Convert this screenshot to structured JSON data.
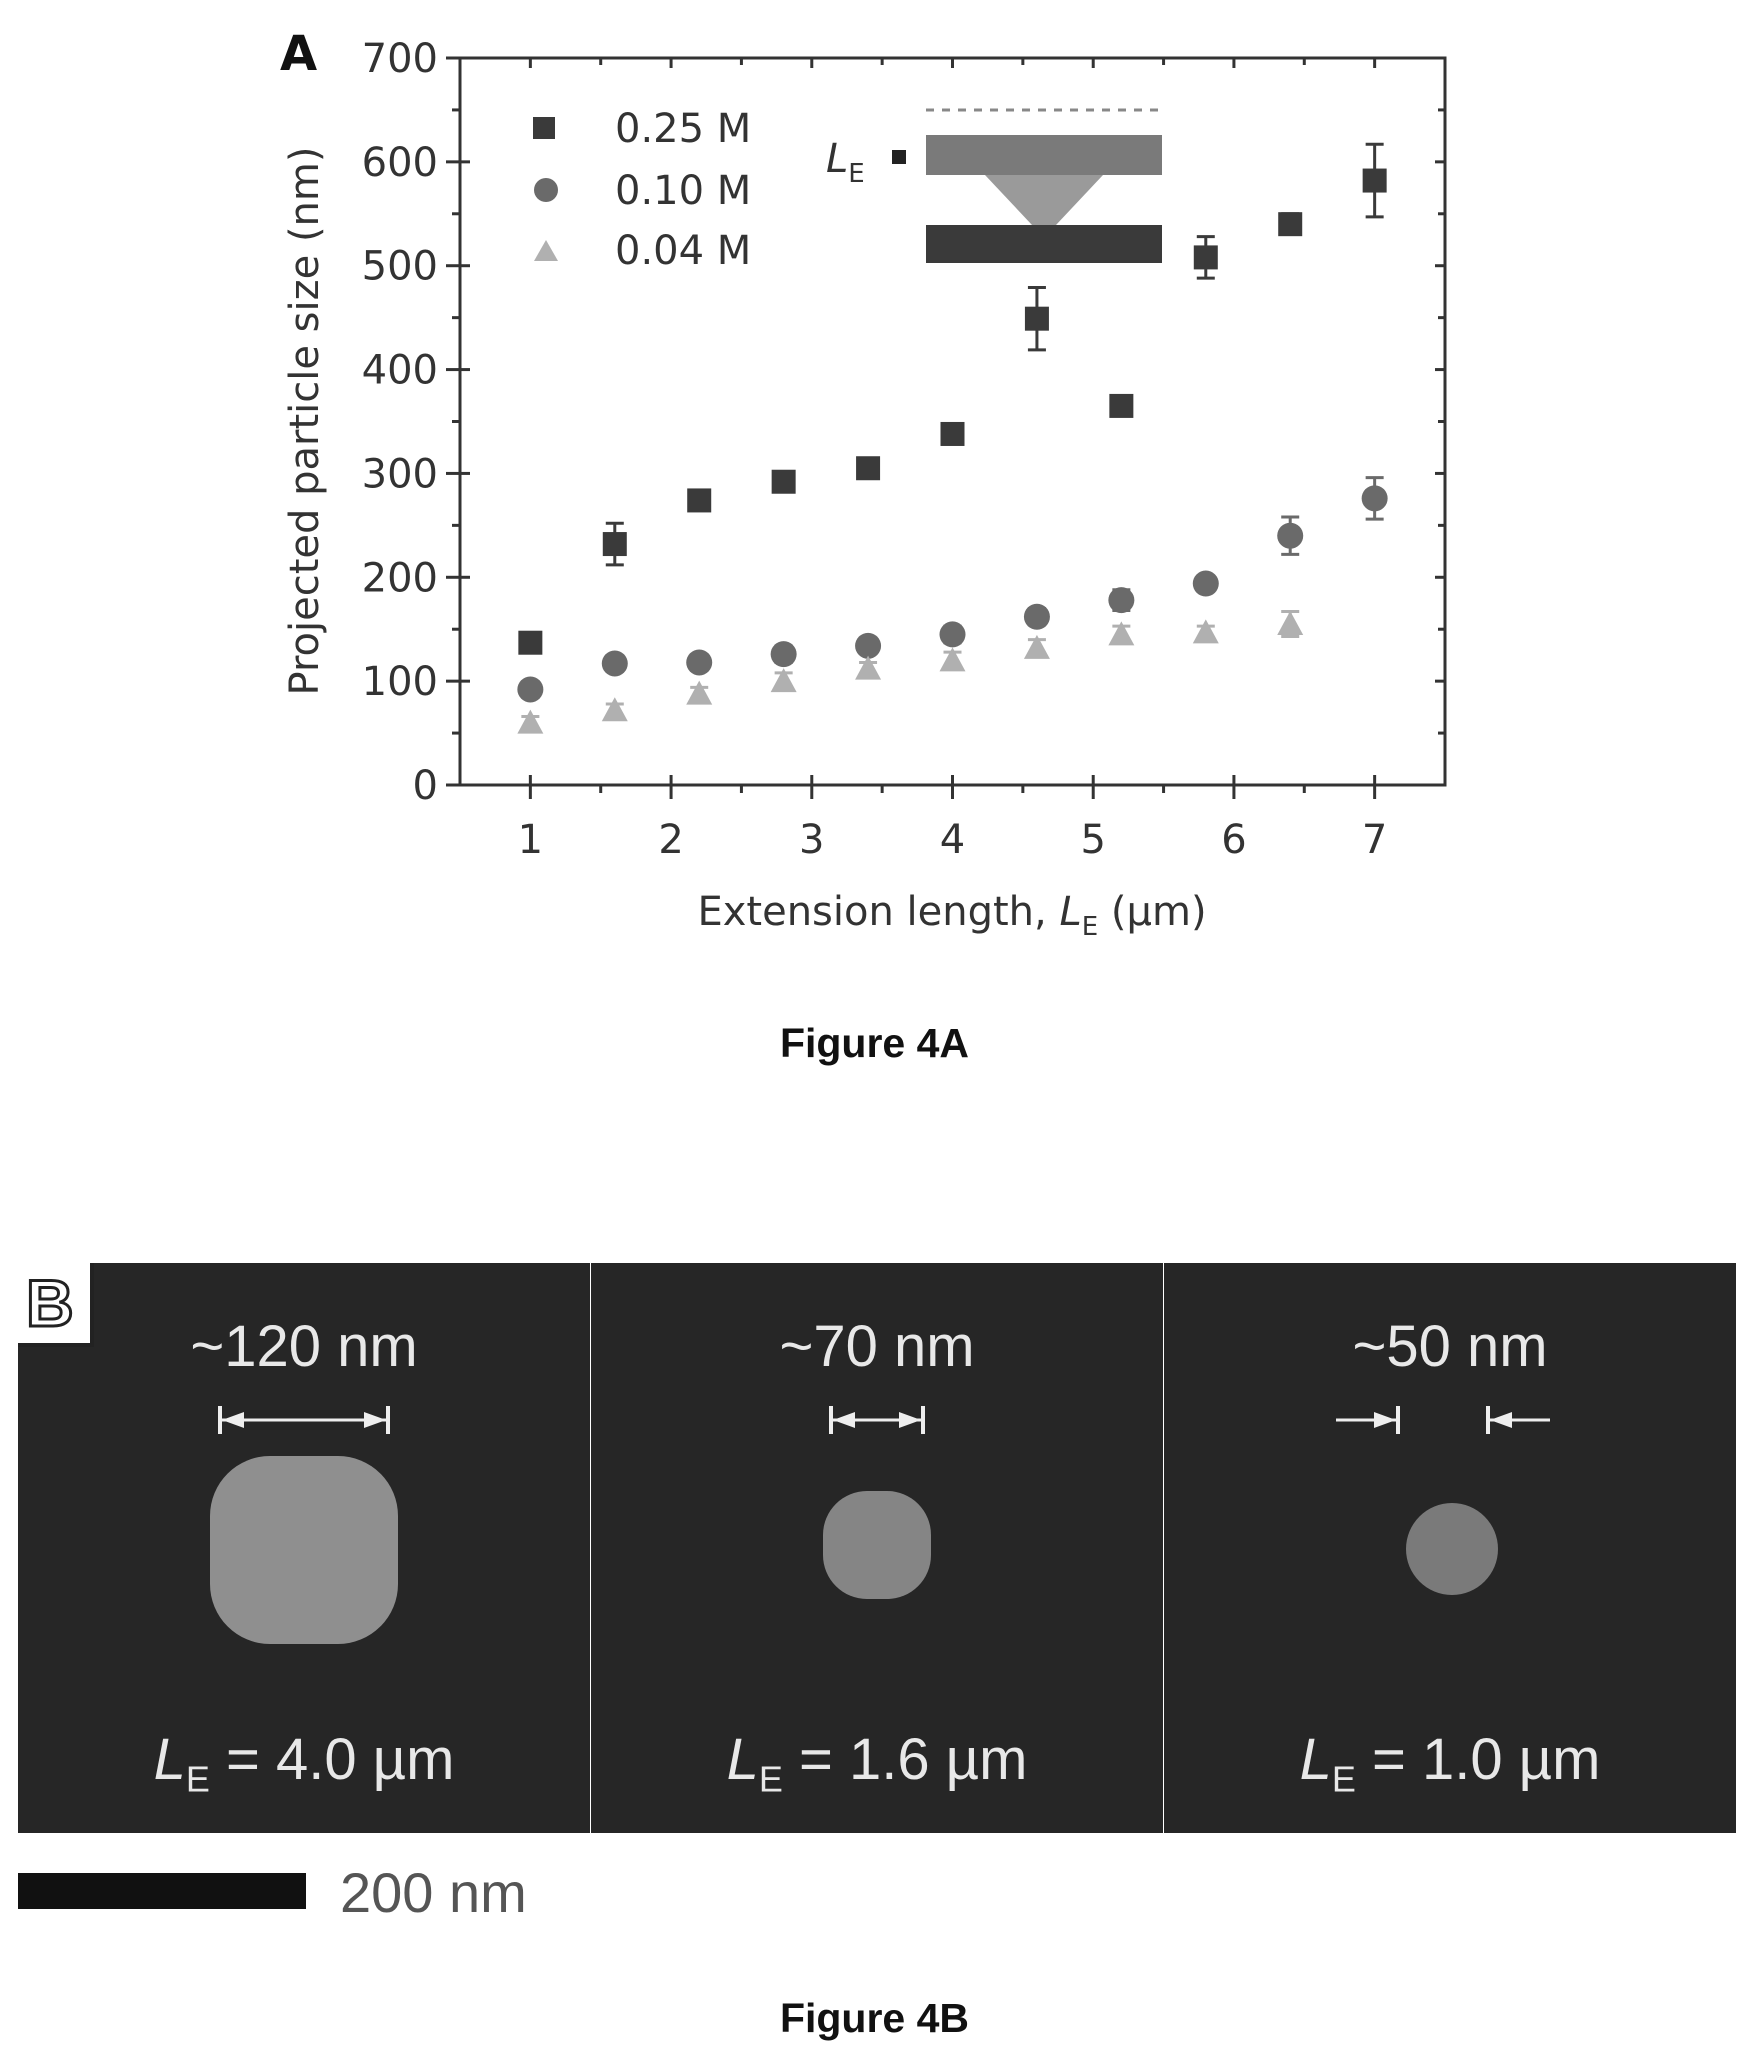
{
  "figure_a": {
    "panel_label": "A",
    "caption": "Figure 4A",
    "inset_label": "L",
    "inset_label_sub": "E"
  },
  "figure_b": {
    "panel_label": "B",
    "caption": "Figure 4B",
    "scale_bar_label": "200 nm",
    "panels": [
      {
        "size_label": "~120 nm",
        "le_prefix": "L",
        "le_sub": "E",
        "le_value": " = 4.0 µm",
        "particle_brightness": "#8f8f8f"
      },
      {
        "size_label": "~70 nm",
        "le_prefix": "L",
        "le_sub": "E",
        "le_value": " = 1.6 µm",
        "particle_brightness": "#858585"
      },
      {
        "size_label": "~50 nm",
        "le_prefix": "L",
        "le_sub": "E",
        "le_value": " = 1.0 µm",
        "particle_brightness": "#7a7a7a"
      }
    ]
  },
  "chart_data": {
    "type": "scatter",
    "title": "",
    "xlabel": "Extension length, ",
    "xlabel_symbol": "L",
    "xlabel_sub": "E",
    "xlabel_unit": " (µm)",
    "ylabel": "Projected particle size (nm)",
    "xlim": [
      0.5,
      7.5
    ],
    "ylim": [
      0,
      700
    ],
    "xticks": [
      1,
      2,
      3,
      4,
      5,
      6,
      7
    ],
    "yticks": [
      0,
      100,
      200,
      300,
      400,
      500,
      600,
      700
    ],
    "legend_position": "top-left",
    "grid": false,
    "series": [
      {
        "name": "0.25 M",
        "marker": "square",
        "color": "#3a3a3a",
        "x": [
          1.0,
          1.6,
          2.2,
          2.8,
          3.4,
          4.0,
          4.6,
          5.2,
          5.8,
          6.4,
          7.0
        ],
        "y": [
          137,
          232,
          274,
          292,
          305,
          338,
          449,
          365,
          508,
          540,
          582
        ],
        "err": [
          8,
          20,
          8,
          8,
          8,
          8,
          30,
          8,
          20,
          10,
          35
        ]
      },
      {
        "name": "0.10 M",
        "marker": "circle",
        "color": "#6a6a6a",
        "x": [
          1.0,
          1.6,
          2.2,
          2.8,
          3.4,
          4.0,
          4.6,
          5.2,
          5.8,
          6.4,
          7.0
        ],
        "y": [
          92,
          117,
          118,
          126,
          134,
          145,
          162,
          178,
          194,
          240,
          276
        ],
        "err": [
          6,
          6,
          6,
          8,
          6,
          8,
          8,
          10,
          6,
          18,
          20
        ]
      },
      {
        "name": "0.04 M",
        "marker": "triangle",
        "color": "#b0b0b0",
        "x": [
          1.0,
          1.6,
          2.2,
          2.8,
          3.4,
          4.0,
          4.6,
          5.2,
          5.8,
          6.4
        ],
        "y": [
          60,
          72,
          88,
          100,
          112,
          120,
          132,
          145,
          147,
          155
        ],
        "err": [
          6,
          6,
          6,
          8,
          6,
          8,
          8,
          8,
          6,
          12
        ]
      }
    ]
  }
}
